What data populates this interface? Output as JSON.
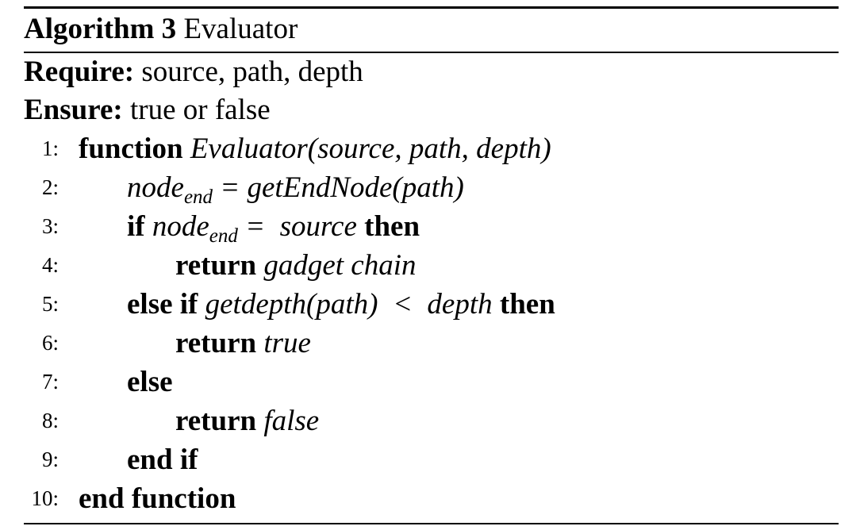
{
  "algorithm": {
    "label": "Algorithm 3",
    "title": "Evaluator"
  },
  "require": {
    "keyword": "Require:",
    "text": "source, path, depth"
  },
  "ensure": {
    "keyword": "Ensure:",
    "text": "true or false"
  },
  "lines": [
    {
      "num": "1:",
      "kw": "function",
      "math": "Evaluator(source, path, depth)"
    },
    {
      "num": "2:",
      "var": "node",
      "sub": "end",
      "rest": "= getEndNode(path)"
    },
    {
      "num": "3:",
      "kw": "if",
      "var": "node",
      "sub": "end",
      "rest": "=  source",
      "kw2": "then"
    },
    {
      "num": "4:",
      "kw": "return",
      "math": "gadget chain"
    },
    {
      "num": "5:",
      "kw": "else if",
      "math": "getdepth(path)  <  depth",
      "kw2": "then"
    },
    {
      "num": "6:",
      "kw": "return",
      "math": "true"
    },
    {
      "num": "7:",
      "kw": "else"
    },
    {
      "num": "8:",
      "kw": "return",
      "math": "false"
    },
    {
      "num": "9:",
      "kw": "end if"
    },
    {
      "num": "10:",
      "kw": "end function"
    }
  ]
}
